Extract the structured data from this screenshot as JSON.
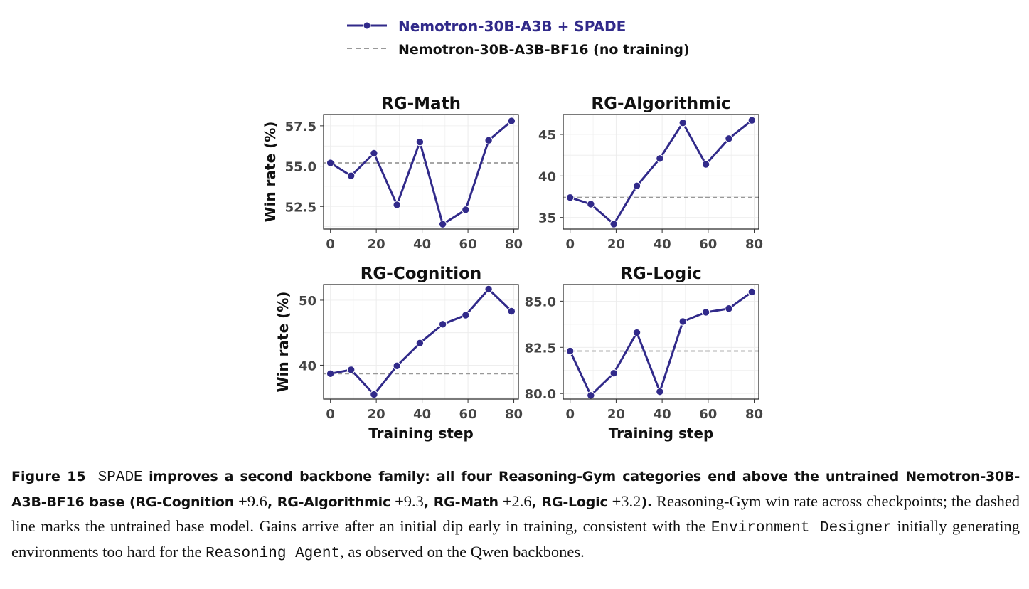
{
  "legend": {
    "series_label": "Nemotron-30B-A3B + SPADE",
    "baseline_label": "Nemotron-30B-A3B-BF16 (no training)"
  },
  "colors": {
    "series": "#312a8a",
    "baseline": "#999999",
    "grid": "#ececec",
    "tick_text": "#444444"
  },
  "chart_data": [
    {
      "type": "line",
      "title": "RG-Math",
      "ylabel": "Win rate (%)",
      "xlabel": "",
      "x": [
        0,
        9,
        19,
        29,
        39,
        49,
        59,
        69,
        79
      ],
      "series": [
        {
          "name": "Nemotron-30B-A3B + SPADE",
          "values": [
            55.2,
            54.4,
            55.8,
            52.6,
            56.5,
            51.4,
            52.3,
            56.6,
            57.8
          ]
        }
      ],
      "baseline": 55.2,
      "xticks": [
        0,
        20,
        40,
        60,
        80
      ],
      "yticks": [
        52.5,
        55.0,
        57.5
      ],
      "ytick_labels": [
        "52.5",
        "55.0",
        "57.5"
      ],
      "xlim": [
        -3,
        82
      ],
      "ylim": [
        51.1,
        58.2
      ],
      "grid": true
    },
    {
      "type": "line",
      "title": "RG-Algorithmic",
      "ylabel": "",
      "xlabel": "",
      "x": [
        0,
        9,
        19,
        29,
        39,
        49,
        59,
        69,
        79
      ],
      "series": [
        {
          "name": "Nemotron-30B-A3B + SPADE",
          "values": [
            37.4,
            36.6,
            34.2,
            38.8,
            42.1,
            46.4,
            41.4,
            44.5,
            46.7
          ]
        }
      ],
      "baseline": 37.4,
      "xticks": [
        0,
        20,
        40,
        60,
        80
      ],
      "yticks": [
        35,
        40,
        45
      ],
      "ytick_labels": [
        "35",
        "40",
        "45"
      ],
      "xlim": [
        -3,
        82
      ],
      "ylim": [
        33.6,
        47.4
      ],
      "grid": true
    },
    {
      "type": "line",
      "title": "RG-Cognition",
      "ylabel": "Win rate (%)",
      "xlabel": "Training step",
      "x": [
        0,
        9,
        19,
        29,
        39,
        49,
        59,
        69,
        79
      ],
      "series": [
        {
          "name": "Nemotron-30B-A3B + SPADE",
          "values": [
            38.7,
            39.3,
            35.5,
            39.9,
            43.4,
            46.3,
            47.7,
            51.7,
            48.3
          ]
        }
      ],
      "baseline": 38.7,
      "xticks": [
        0,
        20,
        40,
        60,
        80
      ],
      "yticks": [
        40,
        50
      ],
      "ytick_labels": [
        "40",
        "50"
      ],
      "xlim": [
        -3,
        82
      ],
      "ylim": [
        34.8,
        52.4
      ],
      "grid": true
    },
    {
      "type": "line",
      "title": "RG-Logic",
      "ylabel": "",
      "xlabel": "Training step",
      "x": [
        0,
        9,
        19,
        29,
        39,
        49,
        59,
        69,
        79
      ],
      "series": [
        {
          "name": "Nemotron-30B-A3B + SPADE",
          "values": [
            82.3,
            79.9,
            81.1,
            83.3,
            80.1,
            83.9,
            84.4,
            84.6,
            85.5
          ]
        }
      ],
      "baseline": 82.3,
      "xticks": [
        0,
        20,
        40,
        60,
        80
      ],
      "yticks": [
        80.0,
        82.5,
        85.0
      ],
      "ytick_labels": [
        "80.0",
        "82.5",
        "85.0"
      ],
      "xlim": [
        -3,
        82
      ],
      "ylim": [
        79.7,
        85.9
      ],
      "grid": true
    }
  ],
  "caption": {
    "label": "Figure 15",
    "name": "SPADE",
    "bold_part1": "improves a second backbone family: all four Reasoning-Gym categories end above the untrained Nemotron-30B-A3B-BF16 base (RG-Cognition",
    "d1": "+9.6",
    "s1": ", RG-Algorithmic",
    "d2": "+9.3",
    "s2": ", RG-Math",
    "d3": "+2.6",
    "s3": ", RG-Logic",
    "d4": "+3.2",
    "s4": ").",
    "text1": "Reasoning-Gym win rate across checkpoints; the dashed line marks the untrained base model. Gains arrive after an initial dip early in training, consistent with the",
    "mono1": "Environment Designer",
    "text2": "initially generating environments too hard for the",
    "mono2": "Reasoning Agent",
    "text3": ", as observed on the Qwen backbones."
  }
}
